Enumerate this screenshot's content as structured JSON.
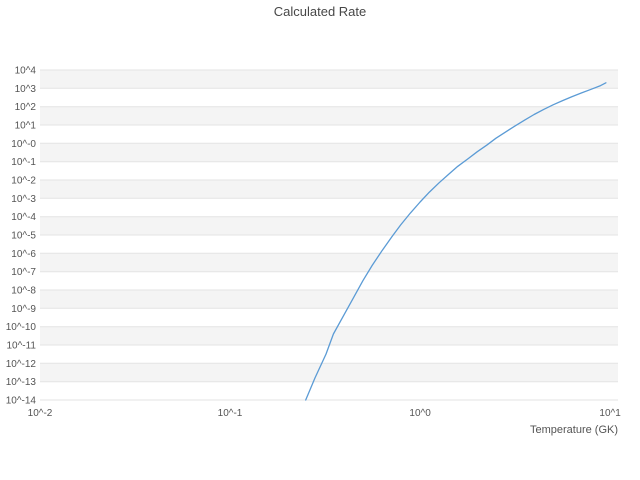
{
  "chart_data": {
    "type": "line",
    "title": "Calculated Rate",
    "xlabel": "Temperature (GK)",
    "ylabel": "",
    "x_scale": "log",
    "y_scale": "log",
    "xlim": [
      0.01,
      11
    ],
    "ylim": [
      1e-14,
      10000.0
    ],
    "grid": {
      "horizontal": true,
      "vertical": false,
      "legend": "none"
    },
    "style": {
      "line_color": "#5b9bd5",
      "grid_color": "#e3e3e3",
      "band_color": "#f4f4f4",
      "text_color": "#545454",
      "title_color": "#474747",
      "background_color": "#ffffff"
    },
    "x_ticks": [
      {
        "value": 0.01,
        "label": "10^-2"
      },
      {
        "value": 0.1,
        "label": "10^-1"
      },
      {
        "value": 1,
        "label": "10^0"
      },
      {
        "value": 10,
        "label": "10^1"
      }
    ],
    "y_ticks": [
      {
        "value": 10000.0,
        "label": "10^4"
      },
      {
        "value": 1000.0,
        "label": "10^3"
      },
      {
        "value": 100.0,
        "label": "10^2"
      },
      {
        "value": 10.0,
        "label": "10^1"
      },
      {
        "value": 1.0,
        "label": "10^-0"
      },
      {
        "value": 0.1,
        "label": "10^-1"
      },
      {
        "value": 0.01,
        "label": "10^-2"
      },
      {
        "value": 0.001,
        "label": "10^-3"
      },
      {
        "value": 0.0001,
        "label": "10^-4"
      },
      {
        "value": 1e-05,
        "label": "10^-5"
      },
      {
        "value": 1e-06,
        "label": "10^-6"
      },
      {
        "value": 1e-07,
        "label": "10^-7"
      },
      {
        "value": 1e-08,
        "label": "10^-8"
      },
      {
        "value": 1e-09,
        "label": "10^-9"
      },
      {
        "value": 1e-10,
        "label": "10^-10"
      },
      {
        "value": 1e-11,
        "label": "10^-11"
      },
      {
        "value": 1e-12,
        "label": "10^-12"
      },
      {
        "value": 1e-13,
        "label": "10^-13"
      },
      {
        "value": 1e-14,
        "label": "10^-14"
      }
    ],
    "series": [
      {
        "name": "calculated-rate",
        "color": "#5b9bd5",
        "x": [
          0.25,
          0.28,
          0.32,
          0.35,
          0.4,
          0.45,
          0.5,
          0.56,
          0.63,
          0.71,
          0.79,
          0.89,
          1.0,
          1.12,
          1.26,
          1.41,
          1.58,
          1.78,
          2.0,
          2.24,
          2.51,
          2.82,
          3.16,
          3.55,
          3.98,
          4.47,
          5.01,
          5.62,
          6.31,
          7.08,
          7.94,
          8.91,
          9.5
        ],
        "y": [
          1e-14,
          1.6e-13,
          3.2e-12,
          4e-11,
          5e-10,
          4.5e-09,
          3.2e-08,
          2.2e-07,
          1.4e-06,
          7.9e-06,
          3.5e-05,
          0.00016,
          0.00063,
          0.0022,
          0.0071,
          0.02,
          0.056,
          0.14,
          0.35,
          0.79,
          1.9,
          4.2,
          8.9,
          18.6,
          37.2,
          70.8,
          126,
          214,
          355,
          562,
          891,
          1410,
          2000
        ]
      }
    ]
  }
}
